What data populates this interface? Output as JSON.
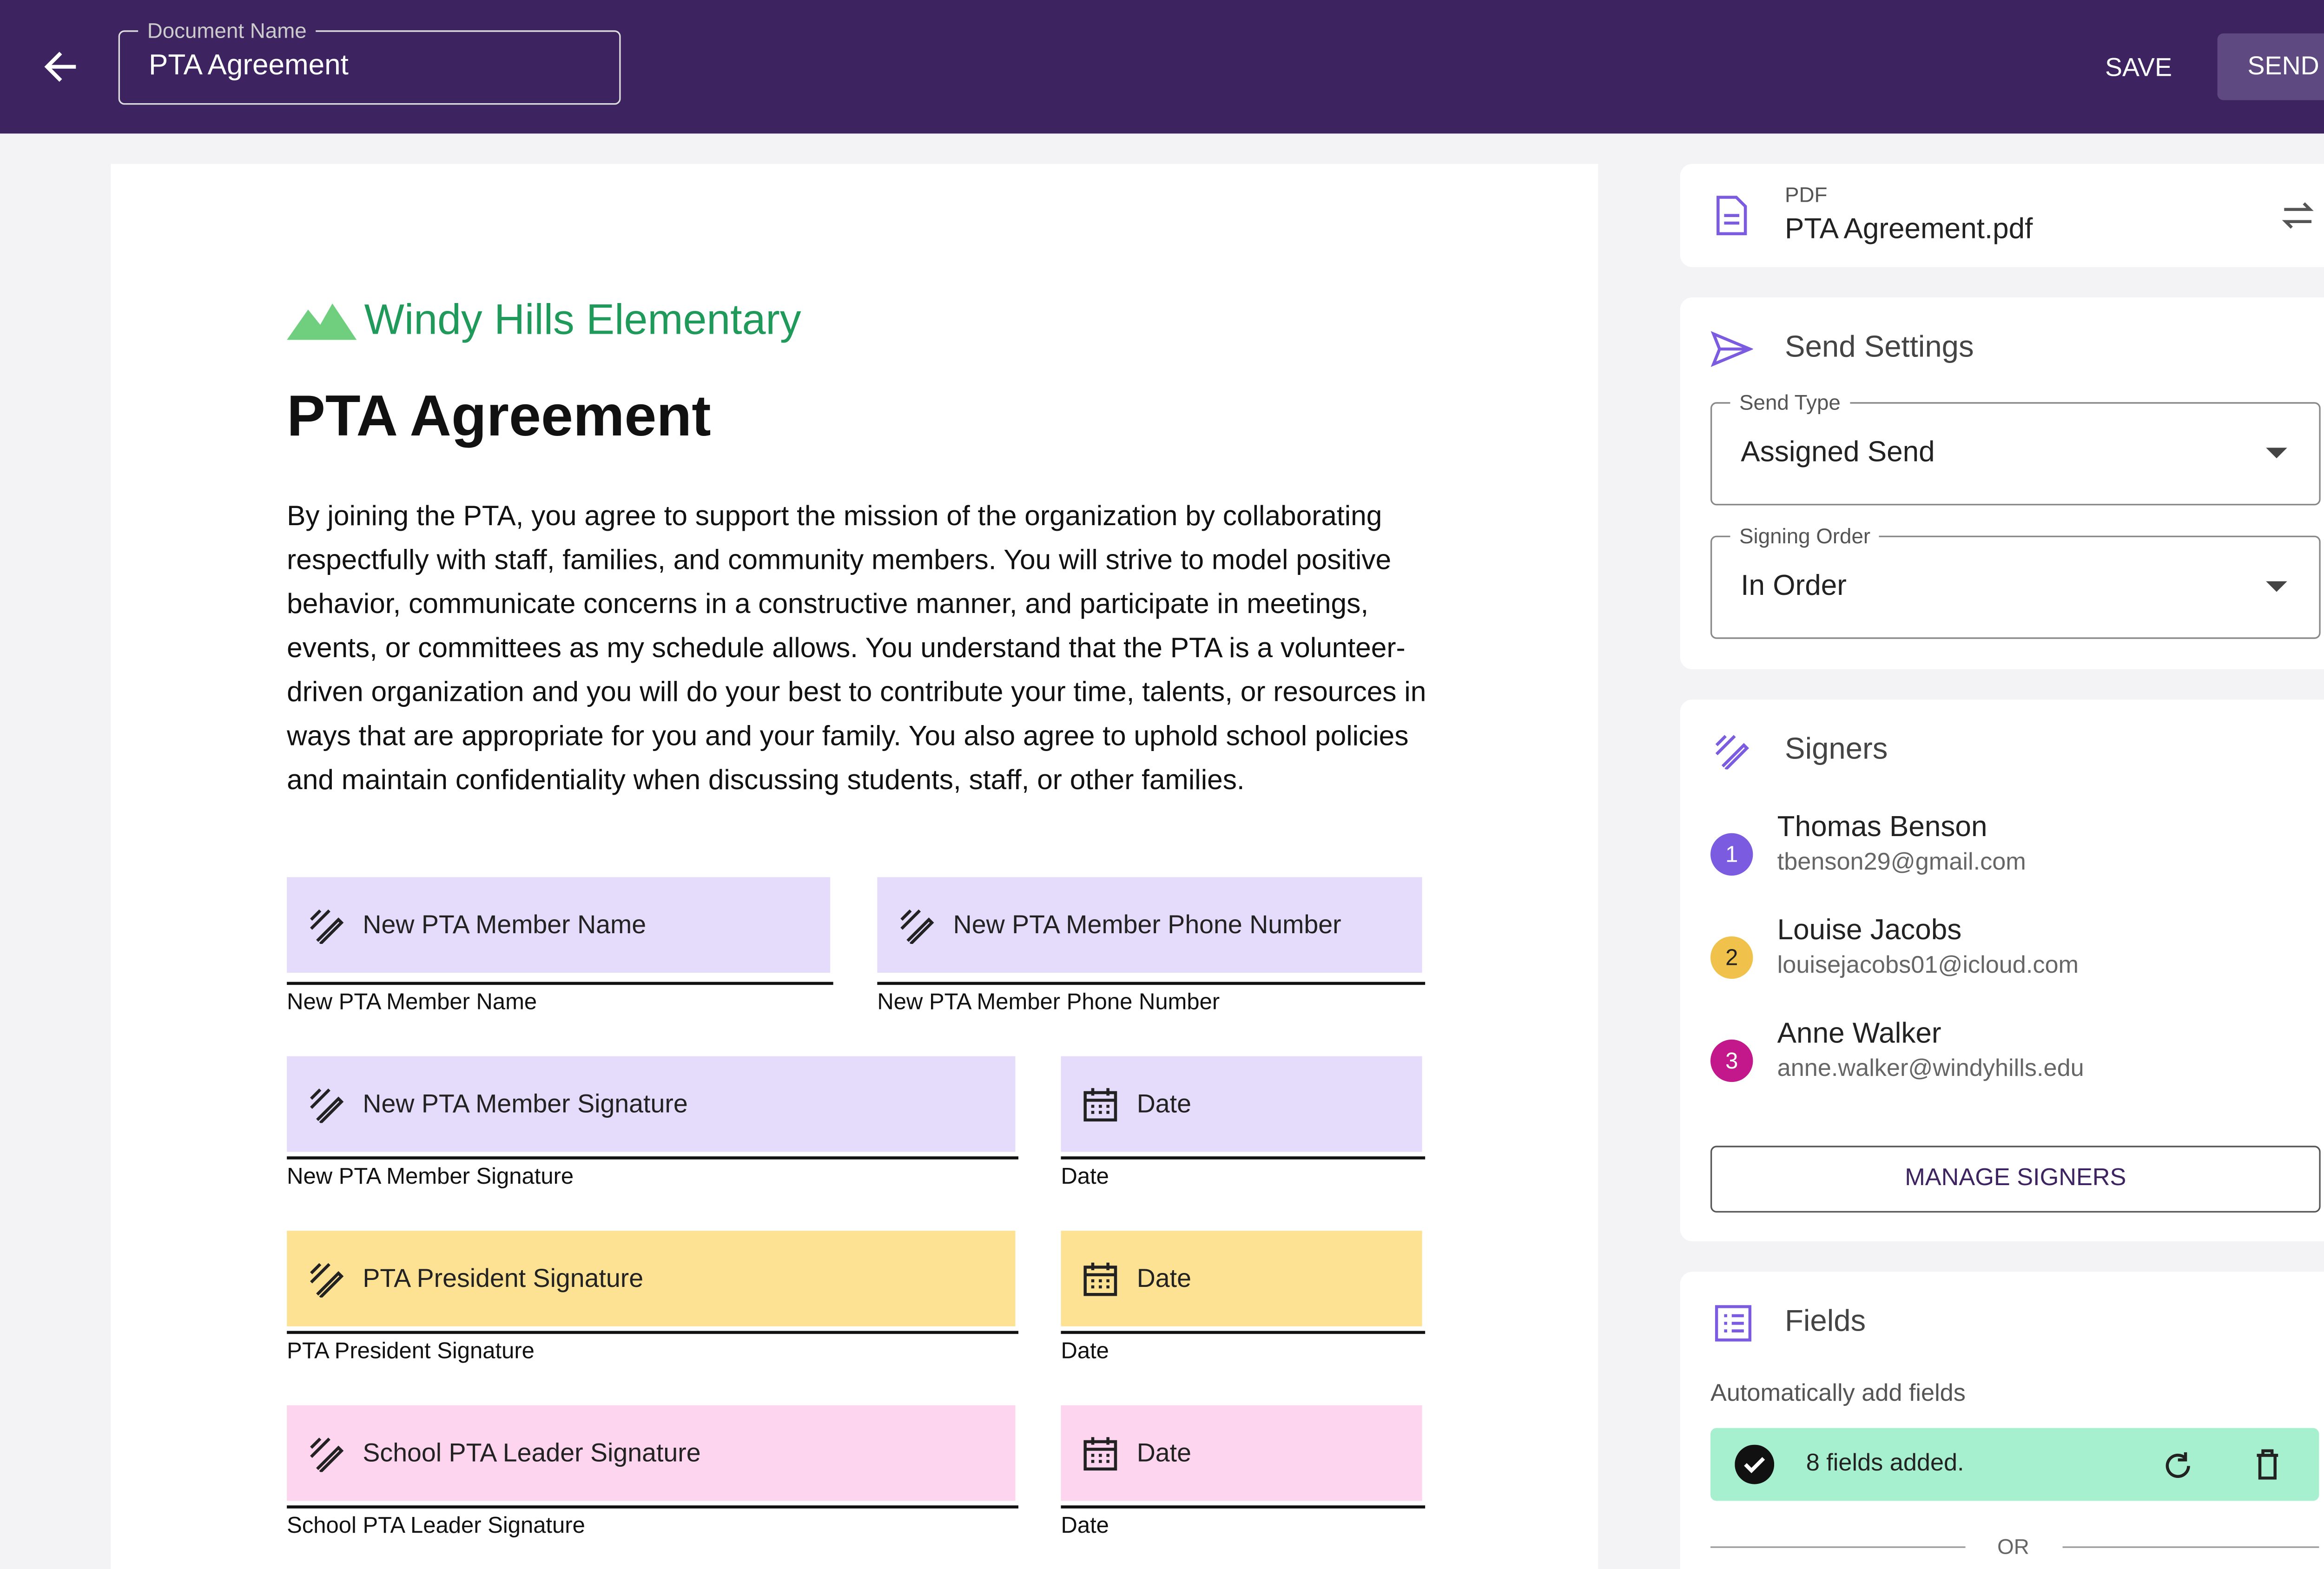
{
  "header": {
    "document_name_label": "Document Name",
    "document_name": "PTA Agreement",
    "save": "SAVE",
    "send": "SEND"
  },
  "document": {
    "school": "Windy Hills Elementary",
    "title": "PTA Agreement",
    "body": "By joining the PTA, you agree to support the mission of the organization by collaborating respectfully with staff, families, and community members. You will strive to model positive behavior, communicate concerns in a constructive manner, and participate in meetings, events, or committees as my schedule allows. You understand that the PTA is a volunteer-driven organization and you will do your best to contribute your time, talents, or resources in ways that are appropriate for you and your family. You also agree to uphold school policies and maintain confidentiality when discussing students, staff, or other families.",
    "fields": [
      {
        "placeholder": "New PTA Member Name",
        "label": "New PTA Member Name"
      },
      {
        "placeholder": "New PTA Member Phone Number",
        "label": "New PTA Member Phone Number"
      },
      {
        "placeholder": "New PTA Member Signature",
        "label": "New PTA Member Signature"
      },
      {
        "placeholder": "Date",
        "label": "Date"
      },
      {
        "placeholder": "PTA President Signature",
        "label": "PTA President Signature"
      },
      {
        "placeholder": "Date",
        "label": "Date"
      },
      {
        "placeholder": "School PTA Leader Signature",
        "label": "School PTA Leader Signature"
      },
      {
        "placeholder": "Date",
        "label": "Date"
      }
    ]
  },
  "sidebar": {
    "pdf": {
      "label": "PDF",
      "file": "PTA Agreement.pdf"
    },
    "send_settings": {
      "title": "Send Settings",
      "send_type_label": "Send Type",
      "send_type": "Assigned Send",
      "signing_order_label": "Signing Order",
      "signing_order": "In Order"
    },
    "signers": {
      "title": "Signers",
      "list": [
        {
          "number": 1,
          "name": "Thomas Benson",
          "email": "tbenson29@gmail.com"
        },
        {
          "number": 2,
          "name": "Louise Jacobs",
          "email": "louisejacobs01@icloud.com"
        },
        {
          "number": 3,
          "name": "Anne Walker",
          "email": "anne.walker@windyhills.edu"
        }
      ],
      "manage": "MANAGE SIGNERS"
    },
    "fields": {
      "title": "Fields",
      "auto": "Automatically add fields",
      "status": "8 fields added.",
      "or": "OR"
    }
  }
}
